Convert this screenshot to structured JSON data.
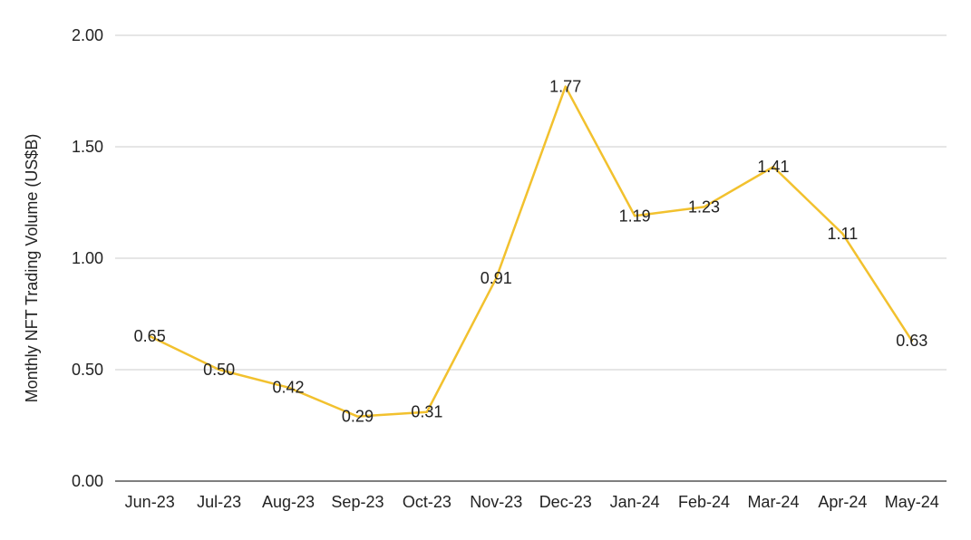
{
  "chart_data": {
    "type": "line",
    "title": "",
    "xlabel": "",
    "ylabel": "Monthly NFT Trading Volume (US$B)",
    "categories": [
      "Jun-23",
      "Jul-23",
      "Aug-23",
      "Sep-23",
      "Oct-23",
      "Nov-23",
      "Dec-23",
      "Jan-24",
      "Feb-24",
      "Mar-24",
      "Apr-24",
      "May-24"
    ],
    "series": [
      {
        "values": [
          0.65,
          0.5,
          0.42,
          0.29,
          0.31,
          0.91,
          1.77,
          1.19,
          1.23,
          1.41,
          1.11,
          0.63
        ],
        "data_labels": [
          "0.65",
          "0.50",
          "0.42",
          "0.29",
          "0.31",
          "0.91",
          "1.77",
          "1.19",
          "1.23",
          "1.41",
          "1.11",
          "0.63"
        ],
        "color": "#F2C12E"
      }
    ],
    "ylim": [
      0,
      2
    ],
    "yticks": [
      0,
      0.5,
      1.0,
      1.5,
      2.0
    ],
    "ytick_labels": [
      "0.00",
      "0.50",
      "1.00",
      "1.50",
      "2.00"
    ],
    "grid": true,
    "legend": "none"
  }
}
